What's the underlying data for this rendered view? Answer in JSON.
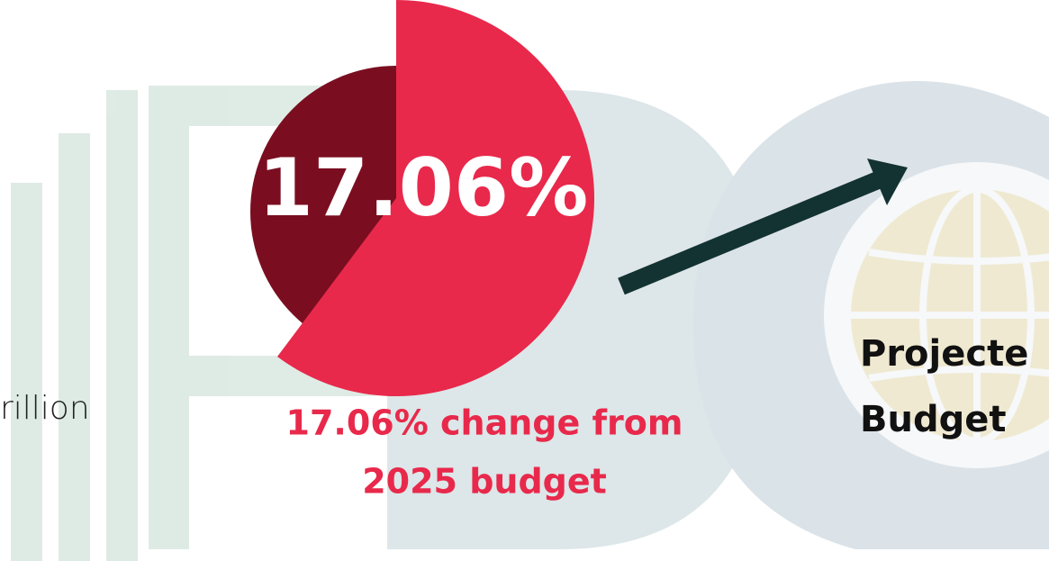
{
  "left": {
    "text": "rillion"
  },
  "highlight": {
    "value": "17.06%",
    "caption": [
      "17.06% change from",
      "2025 budget"
    ]
  },
  "right": {
    "lines": [
      "Projecte",
      "Budget"
    ]
  }
}
